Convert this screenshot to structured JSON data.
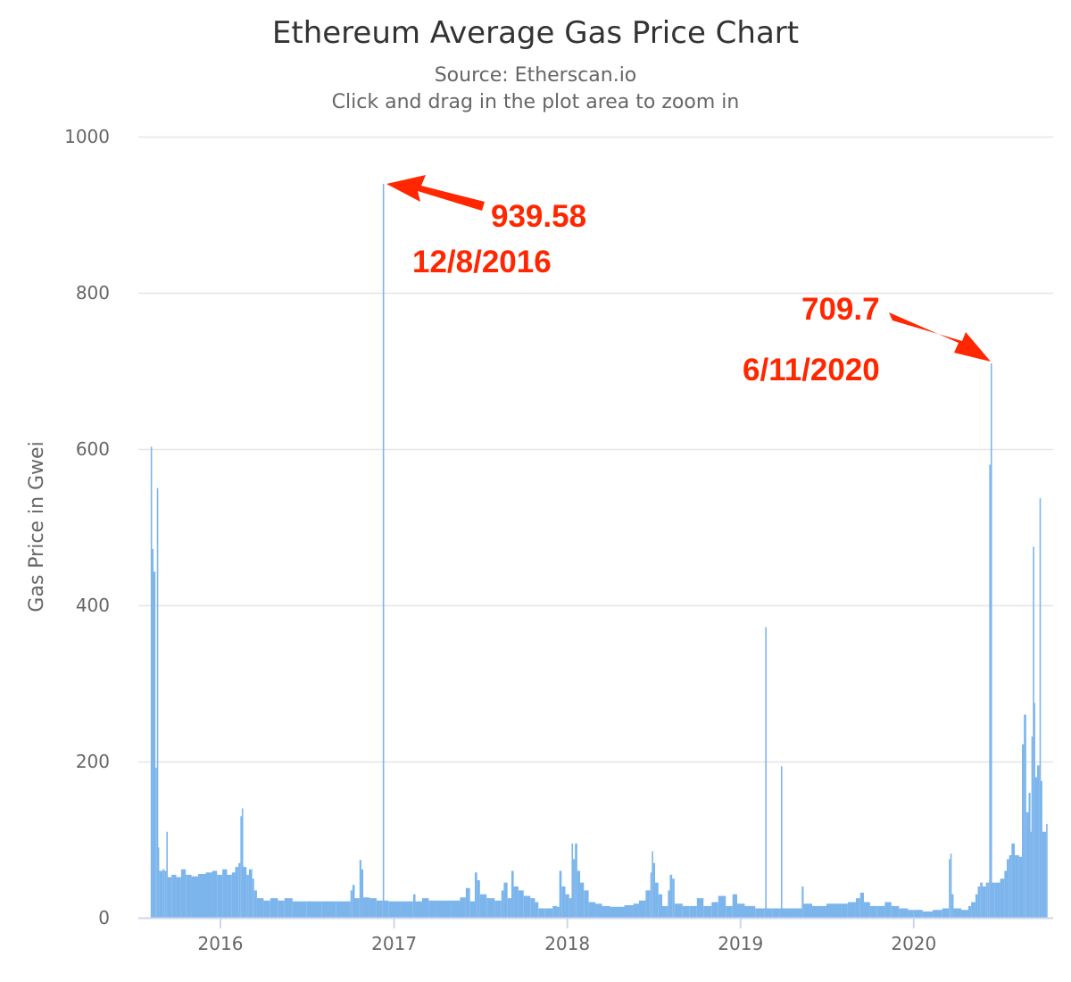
{
  "chart_data": {
    "type": "bar",
    "title": "Ethereum Average Gas Price Chart",
    "subtitle": "Source: Etherscan.io",
    "subtitle2": "Click and drag in the plot area to zoom in",
    "xlabel": "",
    "ylabel": "Gas Price in Gwei",
    "ylim": [
      0,
      1000
    ],
    "yticks": [
      0,
      200,
      400,
      600,
      800,
      1000
    ],
    "xticks": [
      "2016",
      "2017",
      "2018",
      "2019",
      "2020"
    ],
    "grid": true,
    "legend": "none",
    "color": "#7cb5ec",
    "annotation_color": "#ff2600",
    "annotations": [
      {
        "value": "939.58",
        "date": "12/8/2016"
      },
      {
        "value": "709.7",
        "date": "6/11/2020"
      }
    ],
    "end_date": "2020-10-08",
    "points": [
      [
        "2015-08-07",
        603
      ],
      [
        "2015-08-10",
        472
      ],
      [
        "2015-08-13",
        443
      ],
      [
        "2015-08-17",
        192
      ],
      [
        "2015-08-20",
        550
      ],
      [
        "2015-08-22",
        90
      ],
      [
        "2015-08-25",
        60
      ],
      [
        "2015-09-01",
        62
      ],
      [
        "2015-09-05",
        60
      ],
      [
        "2015-09-09",
        110
      ],
      [
        "2015-09-12",
        52
      ],
      [
        "2015-09-20",
        55
      ],
      [
        "2015-09-30",
        52
      ],
      [
        "2015-10-10",
        62
      ],
      [
        "2015-10-20",
        55
      ],
      [
        "2015-11-01",
        53
      ],
      [
        "2015-11-15",
        56
      ],
      [
        "2015-12-01",
        58
      ],
      [
        "2015-12-15",
        60
      ],
      [
        "2015-12-25",
        55
      ],
      [
        "2016-01-05",
        62
      ],
      [
        "2016-01-15",
        55
      ],
      [
        "2016-01-25",
        58
      ],
      [
        "2016-02-01",
        65
      ],
      [
        "2016-02-08",
        70
      ],
      [
        "2016-02-12",
        130
      ],
      [
        "2016-02-15",
        140
      ],
      [
        "2016-02-18",
        65
      ],
      [
        "2016-02-25",
        55
      ],
      [
        "2016-03-01",
        62
      ],
      [
        "2016-03-08",
        50
      ],
      [
        "2016-03-12",
        35
      ],
      [
        "2016-03-18",
        25
      ],
      [
        "2016-04-01",
        22
      ],
      [
        "2016-04-15",
        25
      ],
      [
        "2016-05-01",
        22
      ],
      [
        "2016-05-15",
        25
      ],
      [
        "2016-06-01",
        21
      ],
      [
        "2016-07-01",
        21
      ],
      [
        "2016-08-01",
        21
      ],
      [
        "2016-09-01",
        21
      ],
      [
        "2016-09-25",
        21
      ],
      [
        "2016-10-01",
        35
      ],
      [
        "2016-10-05",
        42
      ],
      [
        "2016-10-10",
        25
      ],
      [
        "2016-10-20",
        74
      ],
      [
        "2016-10-24",
        62
      ],
      [
        "2016-10-28",
        26
      ],
      [
        "2016-11-10",
        25
      ],
      [
        "2016-11-25",
        22
      ],
      [
        "2016-12-08",
        939.58
      ],
      [
        "2016-12-09",
        22
      ],
      [
        "2016-12-20",
        21
      ],
      [
        "2017-01-15",
        21
      ],
      [
        "2017-02-10",
        30
      ],
      [
        "2017-02-15",
        21
      ],
      [
        "2017-03-01",
        25
      ],
      [
        "2017-03-15",
        22
      ],
      [
        "2017-04-01",
        22
      ],
      [
        "2017-05-01",
        22
      ],
      [
        "2017-05-20",
        26
      ],
      [
        "2017-06-01",
        38
      ],
      [
        "2017-06-10",
        21
      ],
      [
        "2017-06-20",
        58
      ],
      [
        "2017-06-25",
        48
      ],
      [
        "2017-07-01",
        30
      ],
      [
        "2017-07-15",
        25
      ],
      [
        "2017-08-01",
        22
      ],
      [
        "2017-08-15",
        35
      ],
      [
        "2017-08-20",
        45
      ],
      [
        "2017-08-28",
        25
      ],
      [
        "2017-09-05",
        60
      ],
      [
        "2017-09-10",
        40
      ],
      [
        "2017-09-20",
        35
      ],
      [
        "2017-10-01",
        28
      ],
      [
        "2017-10-15",
        25
      ],
      [
        "2017-10-25",
        20
      ],
      [
        "2017-11-01",
        12
      ],
      [
        "2017-11-15",
        12
      ],
      [
        "2017-12-01",
        15
      ],
      [
        "2017-12-10",
        14
      ],
      [
        "2017-12-15",
        60
      ],
      [
        "2017-12-20",
        40
      ],
      [
        "2017-12-28",
        30
      ],
      [
        "2018-01-05",
        25
      ],
      [
        "2018-01-10",
        95
      ],
      [
        "2018-01-13",
        75
      ],
      [
        "2018-01-17",
        95
      ],
      [
        "2018-01-22",
        60
      ],
      [
        "2018-01-28",
        45
      ],
      [
        "2018-02-05",
        35
      ],
      [
        "2018-02-15",
        20
      ],
      [
        "2018-03-01",
        18
      ],
      [
        "2018-03-15",
        15
      ],
      [
        "2018-04-01",
        14
      ],
      [
        "2018-05-01",
        16
      ],
      [
        "2018-05-20",
        18
      ],
      [
        "2018-06-01",
        22
      ],
      [
        "2018-06-15",
        35
      ],
      [
        "2018-06-25",
        58
      ],
      [
        "2018-06-28",
        85
      ],
      [
        "2018-07-01",
        70
      ],
      [
        "2018-07-05",
        45
      ],
      [
        "2018-07-12",
        30
      ],
      [
        "2018-07-20",
        15
      ],
      [
        "2018-08-01",
        35
      ],
      [
        "2018-08-05",
        55
      ],
      [
        "2018-08-10",
        50
      ],
      [
        "2018-08-15",
        18
      ],
      [
        "2018-09-01",
        15
      ],
      [
        "2018-09-15",
        15
      ],
      [
        "2018-10-01",
        25
      ],
      [
        "2018-10-15",
        15
      ],
      [
        "2018-11-01",
        20
      ],
      [
        "2018-11-15",
        28
      ],
      [
        "2018-12-01",
        15
      ],
      [
        "2018-12-15",
        30
      ],
      [
        "2018-12-25",
        18
      ],
      [
        "2019-01-10",
        15
      ],
      [
        "2019-02-01",
        12
      ],
      [
        "2019-02-20",
        12
      ],
      [
        "2019-02-22",
        372
      ],
      [
        "2019-02-24",
        12
      ],
      [
        "2019-03-10",
        12
      ],
      [
        "2019-03-25",
        12
      ],
      [
        "2019-03-27",
        194
      ],
      [
        "2019-03-29",
        12
      ],
      [
        "2019-04-15",
        12
      ],
      [
        "2019-05-01",
        12
      ],
      [
        "2019-05-10",
        40
      ],
      [
        "2019-05-14",
        18
      ],
      [
        "2019-06-01",
        15
      ],
      [
        "2019-07-01",
        18
      ],
      [
        "2019-08-01",
        18
      ],
      [
        "2019-08-15",
        20
      ],
      [
        "2019-09-01",
        25
      ],
      [
        "2019-09-10",
        32
      ],
      [
        "2019-09-18",
        20
      ],
      [
        "2019-10-01",
        15
      ],
      [
        "2019-10-15",
        15
      ],
      [
        "2019-11-01",
        20
      ],
      [
        "2019-11-15",
        15
      ],
      [
        "2019-12-01",
        12
      ],
      [
        "2019-12-20",
        10
      ],
      [
        "2020-01-01",
        10
      ],
      [
        "2020-01-20",
        8
      ],
      [
        "2020-02-10",
        10
      ],
      [
        "2020-03-01",
        12
      ],
      [
        "2020-03-10",
        12
      ],
      [
        "2020-03-15",
        75
      ],
      [
        "2020-03-18",
        82
      ],
      [
        "2020-03-21",
        30
      ],
      [
        "2020-03-25",
        12
      ],
      [
        "2020-04-10",
        10
      ],
      [
        "2020-04-25",
        15
      ],
      [
        "2020-05-01",
        20
      ],
      [
        "2020-05-10",
        30
      ],
      [
        "2020-05-15",
        40
      ],
      [
        "2020-05-20",
        45
      ],
      [
        "2020-05-25",
        40
      ],
      [
        "2020-06-01",
        45
      ],
      [
        "2020-06-05",
        45
      ],
      [
        "2020-06-08",
        580
      ],
      [
        "2020-06-11",
        709.7
      ],
      [
        "2020-06-12",
        45
      ],
      [
        "2020-06-20",
        45
      ],
      [
        "2020-07-01",
        50
      ],
      [
        "2020-07-10",
        60
      ],
      [
        "2020-07-15",
        75
      ],
      [
        "2020-07-20",
        80
      ],
      [
        "2020-07-25",
        95
      ],
      [
        "2020-08-01",
        80
      ],
      [
        "2020-08-10",
        78
      ],
      [
        "2020-08-16",
        222
      ],
      [
        "2020-08-20",
        260
      ],
      [
        "2020-08-25",
        135
      ],
      [
        "2020-08-30",
        160
      ],
      [
        "2020-09-03",
        110
      ],
      [
        "2020-09-05",
        232
      ],
      [
        "2020-09-08",
        475
      ],
      [
        "2020-09-10",
        275
      ],
      [
        "2020-09-13",
        180
      ],
      [
        "2020-09-17",
        195
      ],
      [
        "2020-09-22",
        537
      ],
      [
        "2020-09-24",
        175
      ],
      [
        "2020-09-28",
        110
      ],
      [
        "2020-10-03",
        110
      ],
      [
        "2020-10-06",
        120
      ]
    ]
  }
}
